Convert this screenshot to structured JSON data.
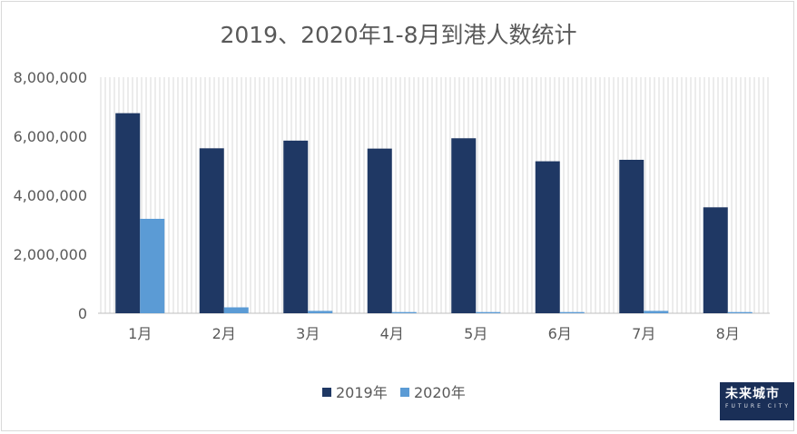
{
  "chart_data": {
    "type": "bar",
    "title": "2019、2020年1-8月到港人数统计",
    "xlabel": "",
    "ylabel": "",
    "categories": [
      "1月",
      "2月",
      "3月",
      "4月",
      "5月",
      "6月",
      "7月",
      "8月"
    ],
    "series": [
      {
        "name": "2019年",
        "color": "#1f3864",
        "values": [
          6780000,
          5590000,
          5850000,
          5580000,
          5930000,
          5150000,
          5200000,
          3590000
        ]
      },
      {
        "name": "2020年",
        "color": "#5b9bd5",
        "values": [
          3200000,
          200000,
          80000,
          40000,
          40000,
          40000,
          80000,
          40000
        ]
      }
    ],
    "ylim": [
      0,
      8000000
    ],
    "yticks": [
      {
        "value": 0,
        "label": "0"
      },
      {
        "value": 2000000,
        "label": "2,000,000"
      },
      {
        "value": 4000000,
        "label": "4,000,000"
      },
      {
        "value": 6000000,
        "label": "6,000,000"
      },
      {
        "value": 8000000,
        "label": "8,000,000"
      }
    ],
    "grid": "vertical-stripes",
    "legend": "bottom-center"
  },
  "logo": {
    "text": "未来城市",
    "subtext": "FUTURE CITY"
  }
}
